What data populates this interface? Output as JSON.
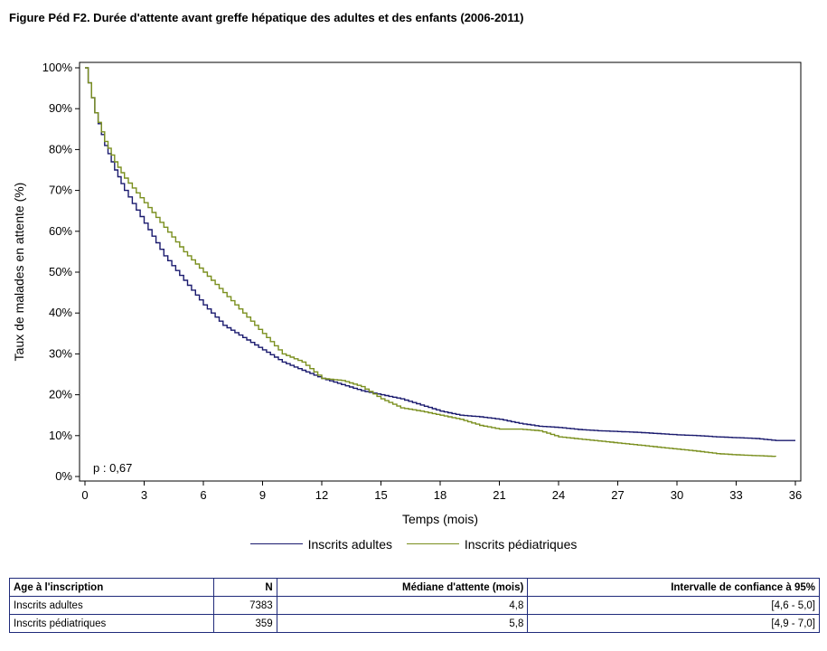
{
  "title": "Figure Péd F2. Durée d'attente avant greffe hépatique des adultes et des enfants (2006-2011)",
  "chart_data": {
    "type": "line",
    "xlabel": "Temps (mois)",
    "ylabel": "Taux de malades en attente (%)",
    "xlim": [
      0,
      36
    ],
    "ylim": [
      0,
      100
    ],
    "x_ticks": [
      "0",
      "3",
      "6",
      "9",
      "12",
      "15",
      "18",
      "21",
      "24",
      "27",
      "30",
      "33",
      "36"
    ],
    "y_ticks": [
      "0%",
      "10%",
      "20%",
      "30%",
      "40%",
      "50%",
      "60%",
      "70%",
      "80%",
      "90%",
      "100%"
    ],
    "annotation": "p : 0,67",
    "grid": false,
    "legend_position": "bottom",
    "series": [
      {
        "name": "Inscrits adultes",
        "color": "#1a1a6e",
        "x": [
          0,
          0.5,
          1,
          1.5,
          2,
          3,
          4,
          5,
          6,
          7,
          8,
          9,
          10,
          11,
          12,
          13,
          14,
          15,
          16,
          17,
          18,
          19,
          20,
          21,
          22,
          23,
          24,
          25,
          26,
          27,
          28,
          29,
          30,
          31,
          32,
          33,
          34,
          35,
          36
        ],
        "y": [
          100,
          89,
          81,
          75,
          70,
          62,
          54,
          48,
          42,
          37,
          34,
          31,
          28,
          26,
          24,
          22.5,
          21,
          20,
          19,
          17.5,
          16,
          15,
          14.6,
          14,
          13,
          12.3,
          12,
          11.5,
          11.2,
          11,
          10.8,
          10.5,
          10.2,
          10,
          9.7,
          9.5,
          9.3,
          8.8,
          8.8
        ]
      },
      {
        "name": "Inscrits pédiatriques",
        "color": "#7a8f1e",
        "x": [
          0,
          0.5,
          1,
          1.5,
          2,
          3,
          4,
          5,
          6,
          7,
          8,
          9,
          10,
          11,
          12,
          13,
          14,
          15,
          16,
          17,
          18,
          19,
          20,
          21,
          22,
          23,
          24,
          25,
          26,
          27,
          28,
          29,
          30,
          31,
          32,
          33,
          34,
          35
        ],
        "y": [
          100,
          89,
          82,
          77,
          73,
          67,
          61,
          55,
          50,
          45,
          40,
          35,
          30,
          28,
          24,
          23.5,
          22,
          19,
          16.8,
          16,
          15,
          14,
          12.5,
          11.6,
          11.6,
          11.2,
          9.7,
          9.2,
          8.7,
          8.2,
          7.7,
          7.2,
          6.7,
          6.2,
          5.6,
          5.3,
          5.1,
          4.9
        ]
      }
    ]
  },
  "table": {
    "headers": [
      "Age à l'inscription",
      "N",
      "Médiane d'attente (mois)",
      "Intervalle de confiance à 95%"
    ],
    "rows": [
      [
        "Inscrits adultes",
        "7383",
        "4,8",
        "[4,6 - 5,0]"
      ],
      [
        "Inscrits pédiatriques",
        "359",
        "5,8",
        "[4,9 - 7,0]"
      ]
    ]
  }
}
